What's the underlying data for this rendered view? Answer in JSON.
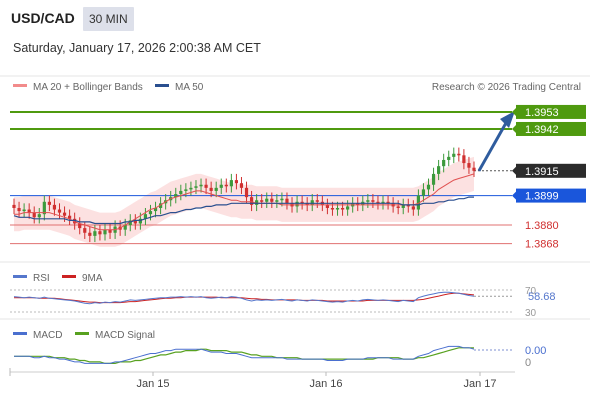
{
  "header": {
    "pair": "USD/CAD",
    "timeframe": "30 MIN",
    "datetime": "Saturday, January 17, 2026 2:00:38 AM CET"
  },
  "legend": {
    "ma20_bb": "MA 20 + Bollinger Bands",
    "ma50": "MA 50",
    "credit": "Research © 2026 Trading Central",
    "rsi": "RSI",
    "rsi_ma": "9MA",
    "macd": "MACD",
    "macd_signal": "MACD Signal"
  },
  "colors": {
    "bb_band": "#f9c9c9",
    "ma20": "#e05050",
    "ma50": "#2a4f8f",
    "resistance": "#4f9a0f",
    "pivot": "#1a56db",
    "support": "#e07070",
    "last_price": "#2b2b2b",
    "arrow": "#2f5c9e",
    "candle_up": "#3c9a3c",
    "candle_down": "#d03030",
    "rsi": "#5577cc",
    "rsi_ma": "#cc2222",
    "macd": "#4a6fcf",
    "macd_signal": "#58a120"
  },
  "chart_data": [
    {
      "type": "candlestick",
      "title": "USD/CAD",
      "x_ticks": [
        "Jan 15",
        "Jan 16",
        "Jan 17"
      ],
      "ylim": [
        1.386,
        1.3962
      ],
      "levels": [
        {
          "value": 1.3953,
          "label": "1.3953",
          "kind": "resistance"
        },
        {
          "value": 1.3942,
          "label": "1.3942",
          "kind": "resistance"
        },
        {
          "value": 1.3915,
          "label": "1.3915",
          "kind": "last"
        },
        {
          "value": 1.3899,
          "label": "1.3899",
          "kind": "pivot"
        },
        {
          "value": 1.388,
          "label": "1.3880",
          "kind": "support"
        },
        {
          "value": 1.3868,
          "label": "1.3868",
          "kind": "support"
        }
      ],
      "close": [
        1.3891,
        1.3889,
        1.389,
        1.3888,
        1.3885,
        1.3887,
        1.3895,
        1.3893,
        1.389,
        1.3888,
        1.3886,
        1.3884,
        1.3881,
        1.3878,
        1.3875,
        1.3873,
        1.3876,
        1.3874,
        1.3877,
        1.3875,
        1.3879,
        1.3877,
        1.388,
        1.3883,
        1.3881,
        1.3884,
        1.3887,
        1.3889,
        1.3891,
        1.3894,
        1.3896,
        1.3898,
        1.39,
        1.3902,
        1.3903,
        1.3904,
        1.3905,
        1.3906,
        1.3904,
        1.3902,
        1.3904,
        1.3906,
        1.3905,
        1.3909,
        1.3907,
        1.3904,
        1.3898,
        1.3893,
        1.3896,
        1.3895,
        1.3897,
        1.3895,
        1.3896,
        1.3897,
        1.3894,
        1.3892,
        1.3895,
        1.3894,
        1.3893,
        1.3896,
        1.3895,
        1.3893,
        1.3891,
        1.389,
        1.3891,
        1.389,
        1.3892,
        1.3894,
        1.3893,
        1.3895,
        1.3896,
        1.3895,
        1.3894,
        1.3895,
        1.3894,
        1.3892,
        1.3891,
        1.3893,
        1.3892,
        1.389,
        1.3899,
        1.3903,
        1.3906,
        1.3913,
        1.3918,
        1.3922,
        1.3924,
        1.3926,
        1.3925,
        1.392,
        1.3917,
        1.3915
      ],
      "ma20": [
        1.3887,
        1.3887,
        1.3888,
        1.3888,
        1.3888,
        1.3888,
        1.3888,
        1.3888,
        1.3887,
        1.3886,
        1.3885,
        1.3884,
        1.3882,
        1.3881,
        1.388,
        1.3879,
        1.3878,
        1.3877,
        1.3877,
        1.3877,
        1.3877,
        1.3878,
        1.388,
        1.3882,
        1.3884,
        1.3886,
        1.3888,
        1.389,
        1.3891,
        1.3893,
        1.3895,
        1.3897,
        1.3898,
        1.3899,
        1.39,
        1.3901,
        1.3902,
        1.3902,
        1.3901,
        1.39,
        1.3899,
        1.3898,
        1.3897,
        1.3896,
        1.3896,
        1.3895,
        1.3895,
        1.3895,
        1.3894,
        1.3894,
        1.3894,
        1.3894,
        1.3894,
        1.3893,
        1.3893,
        1.3893,
        1.3893,
        1.3893,
        1.3893,
        1.3893,
        1.3893,
        1.3893,
        1.3893,
        1.3893,
        1.3893,
        1.3893,
        1.3893,
        1.3893,
        1.3893,
        1.3893,
        1.3893,
        1.3893,
        1.3893,
        1.3893,
        1.3893,
        1.3893,
        1.3893,
        1.3893,
        1.3893,
        1.3893,
        1.3894,
        1.3896,
        1.3898,
        1.39,
        1.3903,
        1.3905,
        1.3907,
        1.3909,
        1.391,
        1.3911,
        1.3912,
        1.3913
      ],
      "ma50": [
        1.3886,
        1.3885,
        1.3885,
        1.3885,
        1.3884,
        1.3884,
        1.3884,
        1.3884,
        1.3884,
        1.3884,
        1.3884,
        1.3883,
        1.3883,
        1.3882,
        1.3882,
        1.3882,
        1.3881,
        1.3881,
        1.3881,
        1.3881,
        1.3881,
        1.3881,
        1.3882,
        1.3882,
        1.3883,
        1.3883,
        1.3884,
        1.3885,
        1.3886,
        1.3886,
        1.3887,
        1.3888,
        1.3888,
        1.3889,
        1.389,
        1.389,
        1.3891,
        1.3891,
        1.3892,
        1.3892,
        1.3893,
        1.3893,
        1.3893,
        1.3894,
        1.3894,
        1.3894,
        1.3894,
        1.3894,
        1.3894,
        1.3894,
        1.3894,
        1.3894,
        1.3894,
        1.3894,
        1.3894,
        1.3894,
        1.3894,
        1.3894,
        1.3894,
        1.3894,
        1.3894,
        1.3894,
        1.3894,
        1.3894,
        1.3894,
        1.3894,
        1.3894,
        1.3894,
        1.3894,
        1.3894,
        1.3894,
        1.3894,
        1.3894,
        1.3894,
        1.3894,
        1.3894,
        1.3894,
        1.3893,
        1.3893,
        1.3893,
        1.3893,
        1.3894,
        1.3894,
        1.3894,
        1.3895,
        1.3895,
        1.3896,
        1.3896,
        1.3897,
        1.3897,
        1.3898,
        1.3898
      ],
      "bb_width": 0.0011
    },
    {
      "type": "line",
      "title": "RSI",
      "ylim": [
        30,
        70
      ],
      "ticks": [
        "70",
        "30"
      ],
      "last_label": "58.68",
      "rsi": [
        58,
        57,
        56,
        57,
        56,
        55,
        57,
        55,
        54,
        53,
        52,
        51,
        50,
        48,
        46,
        45,
        47,
        46,
        48,
        47,
        49,
        48,
        50,
        52,
        51,
        52,
        53,
        54,
        55,
        56,
        56,
        57,
        57,
        58,
        57,
        58,
        57,
        58,
        56,
        55,
        56,
        57,
        56,
        58,
        57,
        55,
        52,
        50,
        52,
        51,
        52,
        51,
        52,
        53,
        51,
        50,
        52,
        51,
        50,
        52,
        51,
        50,
        49,
        48,
        49,
        48,
        50,
        51,
        50,
        52,
        53,
        52,
        51,
        52,
        51,
        50,
        49,
        51,
        50,
        49,
        56,
        59,
        61,
        63,
        65,
        66,
        66,
        65,
        64,
        62,
        60,
        58.68
      ],
      "ma9": [
        56,
        56,
        56,
        56,
        56,
        55,
        55,
        55,
        55,
        54,
        53,
        52,
        51,
        50,
        49,
        48,
        48,
        47,
        47,
        47,
        47,
        47,
        48,
        49,
        49,
        50,
        51,
        52,
        53,
        54,
        55,
        55,
        56,
        56,
        57,
        57,
        57,
        57,
        57,
        57,
        57,
        56,
        56,
        56,
        56,
        56,
        55,
        54,
        54,
        53,
        53,
        52,
        52,
        52,
        52,
        52,
        52,
        51,
        51,
        51,
        51,
        51,
        50,
        50,
        50,
        50,
        50,
        50,
        50,
        50,
        51,
        51,
        51,
        51,
        51,
        51,
        51,
        51,
        51,
        51,
        52,
        53,
        55,
        57,
        59,
        61,
        63,
        64,
        64,
        63,
        62,
        61
      ]
    },
    {
      "type": "line",
      "title": "MACD",
      "ticks": [
        "0.00",
        "0"
      ],
      "last_label": "0.00",
      "ylim": [
        -0.0009,
        0.0008
      ],
      "macd": [
        0.0,
        0.0,
        0.0,
        0.0,
        -0.0001,
        -0.0001,
        0.0,
        -0.0001,
        -0.0001,
        -0.0002,
        -0.0002,
        -0.0003,
        -0.0004,
        -0.0004,
        -0.0005,
        -0.0005,
        -0.0005,
        -0.0005,
        -0.0005,
        -0.0005,
        -0.0004,
        -0.0004,
        -0.0003,
        -0.0002,
        -0.0001,
        0.0,
        0.0001,
        0.0002,
        0.0002,
        0.0003,
        0.0004,
        0.0004,
        0.0005,
        0.0005,
        0.0005,
        0.0005,
        0.0005,
        0.0005,
        0.0004,
        0.0003,
        0.0003,
        0.0003,
        0.0002,
        0.0002,
        0.0002,
        0.0001,
        0.0,
        -0.0001,
        -0.0001,
        -0.0001,
        -0.0001,
        -0.0001,
        -0.0001,
        -0.0001,
        -0.0002,
        -0.0002,
        -0.0002,
        -0.0002,
        -0.0002,
        -0.0002,
        -0.0002,
        -0.0002,
        -0.0003,
        -0.0003,
        -0.0003,
        -0.0003,
        -0.0002,
        -0.0002,
        -0.0002,
        -0.0002,
        -0.0001,
        -0.0001,
        -0.0001,
        -0.0001,
        -0.0001,
        -0.0002,
        -0.0002,
        -0.0002,
        -0.0002,
        -0.0002,
        0.0,
        0.0001,
        0.0002,
        0.0004,
        0.0005,
        0.0006,
        0.0007,
        0.0007,
        0.0007,
        0.0006,
        0.0006,
        0.0005
      ],
      "signal": [
        0.0,
        0.0,
        0.0,
        0.0,
        0.0,
        0.0,
        0.0,
        0.0,
        -0.0001,
        -0.0001,
        -0.0001,
        -0.0002,
        -0.0002,
        -0.0003,
        -0.0003,
        -0.0004,
        -0.0004,
        -0.0004,
        -0.0005,
        -0.0005,
        -0.0005,
        -0.0004,
        -0.0004,
        -0.0004,
        -0.0003,
        -0.0003,
        -0.0002,
        -0.0001,
        0.0,
        0.0001,
        0.0001,
        0.0002,
        0.0003,
        0.0003,
        0.0004,
        0.0004,
        0.0004,
        0.0005,
        0.0005,
        0.0004,
        0.0004,
        0.0004,
        0.0004,
        0.0003,
        0.0003,
        0.0003,
        0.0002,
        0.0001,
        0.0001,
        0.0,
        0.0,
        0.0,
        -0.0001,
        -0.0001,
        -0.0001,
        -0.0001,
        -0.0001,
        -0.0002,
        -0.0002,
        -0.0002,
        -0.0002,
        -0.0002,
        -0.0002,
        -0.0002,
        -0.0002,
        -0.0002,
        -0.0002,
        -0.0002,
        -0.0002,
        -0.0002,
        -0.0002,
        -0.0002,
        -0.0001,
        -0.0001,
        -0.0001,
        -0.0001,
        -0.0001,
        -0.0002,
        -0.0002,
        -0.0002,
        -0.0001,
        -0.0001,
        0.0,
        0.0001,
        0.0002,
        0.0003,
        0.0004,
        0.0005,
        0.0006,
        0.0006,
        0.0006,
        0.0006
      ]
    }
  ]
}
